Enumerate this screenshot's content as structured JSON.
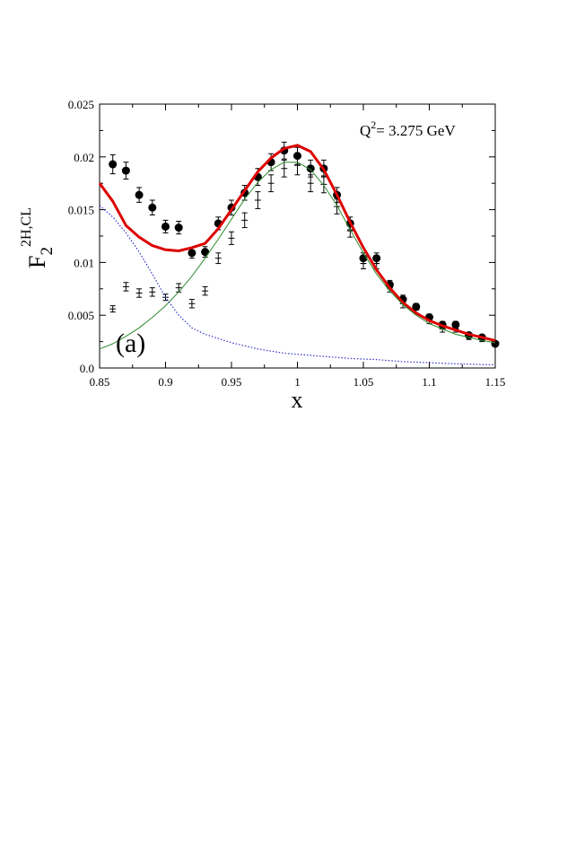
{
  "chart_data": {
    "type": "scatter",
    "title": "",
    "xlabel": "x",
    "ylabel": {
      "main": "F",
      "sub": "2",
      "sup": "2H,CL"
    },
    "xlim": [
      0.85,
      1.15
    ],
    "ylim": [
      0,
      0.025
    ],
    "grid": false,
    "xticks": [
      0.85,
      0.9,
      0.95,
      1.0,
      1.05,
      1.1,
      1.15
    ],
    "xtick_labels": [
      "0.85",
      "0.9",
      "0.95",
      "1",
      "1.05",
      "1.1",
      "1.15"
    ],
    "yticks": [
      0,
      0.005,
      0.01,
      0.015,
      0.02,
      0.025
    ],
    "ytick_labels": [
      "0.0",
      "0.005",
      "0.01",
      "0.015",
      "0.02",
      "0.025"
    ],
    "annotations": {
      "q2_label": "Q",
      "q2_sup": "2",
      "q2_value": "= 3.275 GeV",
      "panel_label": "(a)"
    },
    "series": [
      {
        "kind": "points-filled",
        "color": "#000000",
        "x": [
          0.86,
          0.87,
          0.88,
          0.89,
          0.9,
          0.91,
          0.92,
          0.93,
          0.94,
          0.95,
          0.96,
          0.97,
          0.98,
          0.99,
          1.0,
          1.01,
          1.02,
          1.03,
          1.04,
          1.05,
          1.06,
          1.07,
          1.08,
          1.09,
          1.1,
          1.11,
          1.12,
          1.13,
          1.14,
          1.15
        ],
        "y": [
          0.0193,
          0.0187,
          0.0164,
          0.0152,
          0.0134,
          0.0133,
          0.0109,
          0.011,
          0.0137,
          0.0152,
          0.0166,
          0.0181,
          0.0195,
          0.0206,
          0.0201,
          0.0189,
          0.0189,
          0.0164,
          0.0137,
          0.0104,
          0.0104,
          0.0079,
          0.0065,
          0.0058,
          0.0048,
          0.0041,
          0.0041,
          0.0031,
          0.0029,
          0.0023
        ],
        "err": [
          0.0009,
          0.0008,
          0.0007,
          0.0007,
          0.0006,
          0.0006,
          0.0005,
          0.0005,
          0.0006,
          0.0007,
          0.0007,
          0.0008,
          0.0008,
          0.0008,
          0.0008,
          0.0008,
          0.0008,
          0.0007,
          0.0006,
          0.0005,
          0.0005,
          0.0004,
          0.0004,
          0.0003,
          0.0003,
          0.0003,
          0.0003,
          0.0002,
          0.0002,
          0.0002
        ]
      },
      {
        "kind": "points-cross",
        "color": "#000000",
        "x": [
          0.86,
          0.87,
          0.88,
          0.89,
          0.9,
          0.91,
          0.92,
          0.93,
          0.94,
          0.95,
          0.96,
          0.97,
          0.98,
          0.99,
          1.0,
          1.01,
          1.02,
          1.03,
          1.04,
          1.05,
          1.06,
          1.07,
          1.08,
          1.09,
          1.1,
          1.11,
          1.12,
          1.13,
          1.14,
          1.15
        ],
        "y": [
          0.0056,
          0.0077,
          0.0071,
          0.0072,
          0.0067,
          0.0076,
          0.0061,
          0.0073,
          0.0104,
          0.0123,
          0.014,
          0.0159,
          0.0175,
          0.0189,
          0.0192,
          0.0175,
          0.0174,
          0.0153,
          0.013,
          0.0099,
          0.0099,
          0.0076,
          0.0061,
          0.0055,
          0.0045,
          0.0037,
          0.0037,
          0.0029,
          0.0027,
          0.0023
        ],
        "err": [
          0.0003,
          0.0004,
          0.0004,
          0.0004,
          0.0003,
          0.0004,
          0.0004,
          0.0004,
          0.0005,
          0.0006,
          0.0007,
          0.0008,
          0.0008,
          0.0008,
          0.0009,
          0.0008,
          0.0008,
          0.0007,
          0.0006,
          0.0005,
          0.0005,
          0.0004,
          0.0004,
          0.0003,
          0.0003,
          0.0003,
          0.0003,
          0.0002,
          0.0002,
          0.0002
        ]
      },
      {
        "kind": "line-solid-thick",
        "color": "#dd0000",
        "x": [
          0.85,
          0.86,
          0.87,
          0.88,
          0.89,
          0.9,
          0.91,
          0.92,
          0.93,
          0.94,
          0.95,
          0.96,
          0.97,
          0.98,
          0.99,
          1.0,
          1.01,
          1.02,
          1.03,
          1.04,
          1.05,
          1.06,
          1.07,
          1.08,
          1.09,
          1.1,
          1.11,
          1.12,
          1.13,
          1.14,
          1.15
        ],
        "y": [
          0.0175,
          0.0158,
          0.0135,
          0.0124,
          0.0116,
          0.0112,
          0.0111,
          0.0114,
          0.0118,
          0.0132,
          0.015,
          0.0168,
          0.0186,
          0.0199,
          0.0208,
          0.0211,
          0.0205,
          0.0188,
          0.0164,
          0.0138,
          0.0114,
          0.0093,
          0.0076,
          0.0062,
          0.0052,
          0.0045,
          0.004,
          0.0036,
          0.0032,
          0.0029,
          0.0026
        ]
      },
      {
        "kind": "line-solid-thin",
        "color": "#2e8b2e",
        "x": [
          0.85,
          0.86,
          0.87,
          0.88,
          0.89,
          0.9,
          0.91,
          0.92,
          0.93,
          0.94,
          0.95,
          0.96,
          0.97,
          0.98,
          0.99,
          1.0,
          1.01,
          1.02,
          1.03,
          1.04,
          1.05,
          1.06,
          1.07,
          1.08,
          1.09,
          1.1,
          1.11,
          1.12,
          1.13,
          1.14,
          1.15
        ],
        "y": [
          0.0018,
          0.0023,
          0.003,
          0.0038,
          0.0048,
          0.0059,
          0.0072,
          0.0087,
          0.0104,
          0.0122,
          0.0141,
          0.016,
          0.0176,
          0.0188,
          0.0195,
          0.0195,
          0.0188,
          0.0173,
          0.0154,
          0.0131,
          0.0109,
          0.0089,
          0.0073,
          0.006,
          0.005,
          0.0042,
          0.0037,
          0.0032,
          0.0029,
          0.0026,
          0.0024
        ]
      },
      {
        "kind": "line-dotted",
        "color": "#3333cc",
        "x": [
          0.85,
          0.86,
          0.87,
          0.88,
          0.89,
          0.9,
          0.91,
          0.92,
          0.93,
          0.94,
          0.95,
          0.96,
          0.97,
          0.98,
          0.99,
          1.0,
          1.02,
          1.04,
          1.06,
          1.08,
          1.1,
          1.12,
          1.15
        ],
        "y": [
          0.0154,
          0.0143,
          0.0128,
          0.011,
          0.0089,
          0.0067,
          0.005,
          0.0038,
          0.0032,
          0.0028,
          0.0024,
          0.0021,
          0.0018,
          0.0016,
          0.0014,
          0.0013,
          0.0011,
          0.0009,
          0.0008,
          0.0006,
          0.0005,
          0.0004,
          0.0003
        ]
      }
    ]
  }
}
